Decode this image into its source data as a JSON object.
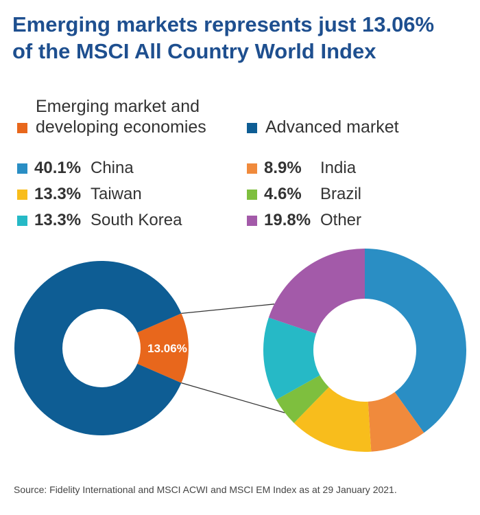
{
  "title": {
    "line1": "Emerging markets represents just 13.06%",
    "line2": "of the MSCI All Country World Index"
  },
  "legend_top": [
    {
      "label_line1": "Emerging market and",
      "label_line2": "developing economies",
      "color": "#e8671c"
    },
    {
      "label_line1": "",
      "label_line2": "Advanced market",
      "color": "#0e5d94"
    }
  ],
  "chart_data": [
    {
      "type": "pie",
      "donut": true,
      "slices": [
        {
          "label": "Emerging market and developing economies",
          "value": 13.06,
          "display": "13.06%",
          "color": "#e8671c"
        },
        {
          "label": "Advanced market",
          "value": 86.94,
          "color": "#0e5d94"
        }
      ]
    },
    {
      "type": "pie",
      "donut": true,
      "slices": [
        {
          "label": "China",
          "value": 40.1,
          "display": "40.1%",
          "color": "#2a8ec4"
        },
        {
          "label": "India",
          "value": 8.9,
          "display": "8.9%",
          "color": "#f08a3c"
        },
        {
          "label": "Taiwan",
          "value": 13.3,
          "display": "13.3%",
          "color": "#f8bd1c"
        },
        {
          "label": "Brazil",
          "value": 4.6,
          "display": "4.6%",
          "color": "#7ebf3e"
        },
        {
          "label": "South Korea",
          "value": 13.3,
          "display": "13.3%",
          "color": "#26b9c6"
        },
        {
          "label": "Other",
          "value": 19.8,
          "display": "19.8%",
          "color": "#a35aa9"
        }
      ]
    }
  ],
  "source": "Source: Fidelity International and MSCI ACWI and MSCI EM Index as at 29 January 2021."
}
